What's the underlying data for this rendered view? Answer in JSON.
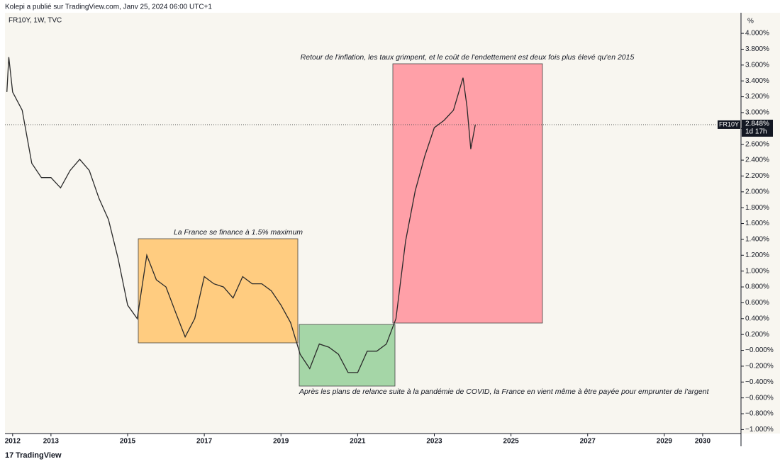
{
  "header": "Kolepi a publié sur TradingView.com, Janv 25, 2024 06:00 UTC+1",
  "symbol_info": "FR10Y, 1W, TVC",
  "footer": "TradingView",
  "chart_data": {
    "type": "line",
    "axis_unit": "%",
    "x": [
      2011.85,
      2011.9,
      2012.0,
      2012.25,
      2012.5,
      2012.75,
      2013.0,
      2013.25,
      2013.5,
      2013.75,
      2014.0,
      2014.25,
      2014.5,
      2014.75,
      2015.0,
      2015.25,
      2015.5,
      2015.75,
      2016.0,
      2016.25,
      2016.5,
      2016.75,
      2017.0,
      2017.25,
      2017.5,
      2017.75,
      2018.0,
      2018.25,
      2018.5,
      2018.75,
      2019.0,
      2019.25,
      2019.5,
      2019.75,
      2020.0,
      2020.25,
      2020.5,
      2020.75,
      2021.0,
      2021.25,
      2021.5,
      2021.75,
      2022.0,
      2022.25,
      2022.5,
      2022.75,
      2023.0,
      2023.25,
      2023.5,
      2023.75,
      2023.85,
      2023.95,
      2024.07
    ],
    "series": [
      {
        "name": "FR10Y",
        "color": "#2a2a2a",
        "values": [
          3.26,
          3.7,
          3.26,
          3.03,
          2.36,
          2.18,
          2.18,
          2.05,
          2.27,
          2.41,
          2.27,
          1.92,
          1.65,
          1.16,
          0.57,
          0.4,
          1.2,
          0.89,
          0.8,
          0.48,
          0.17,
          0.4,
          0.93,
          0.84,
          0.8,
          0.66,
          0.93,
          0.84,
          0.84,
          0.75,
          0.57,
          0.35,
          -0.05,
          -0.23,
          0.08,
          0.04,
          -0.05,
          -0.28,
          -0.28,
          -0.01,
          -0.01,
          0.08,
          0.4,
          1.38,
          2.01,
          2.45,
          2.81,
          2.9,
          3.03,
          3.44,
          3.08,
          2.54,
          2.848
        ]
      }
    ],
    "xlim": [
      2011.8,
      2031.0
    ],
    "xticks": [
      2012,
      2013,
      2015,
      2017,
      2019,
      2021,
      2023,
      2025,
      2027,
      2029,
      2030
    ],
    "ylim": [
      -1.05,
      4.26
    ],
    "yticks": [
      {
        "value": 4,
        "label": "4.000%"
      },
      {
        "value": 3.8,
        "label": "3.800%"
      },
      {
        "value": 3.6,
        "label": "3.600%"
      },
      {
        "value": 3.4,
        "label": "3.400%"
      },
      {
        "value": 3.2,
        "label": "3.200%"
      },
      {
        "value": 3,
        "label": "3.000%"
      },
      {
        "value": 2.8,
        "label": "2.800%"
      },
      {
        "value": 2.6,
        "label": "2.600%"
      },
      {
        "value": 2.4,
        "label": "2.400%"
      },
      {
        "value": 2.2,
        "label": "2.200%"
      },
      {
        "value": 2,
        "label": "2.000%"
      },
      {
        "value": 1.8,
        "label": "1.800%"
      },
      {
        "value": 1.6,
        "label": "1.600%"
      },
      {
        "value": 1.4,
        "label": "1.400%"
      },
      {
        "value": 1.2,
        "label": "1.200%"
      },
      {
        "value": 1,
        "label": "1.000%"
      },
      {
        "value": 0.8,
        "label": "0.800%"
      },
      {
        "value": 0.6,
        "label": "0.600%"
      },
      {
        "value": 0.4,
        "label": "0.400%"
      },
      {
        "value": 0.2,
        "label": "0.200%"
      },
      {
        "value": 0,
        "label": "−0.000%"
      },
      {
        "value": -0.2,
        "label": "−0.200%"
      },
      {
        "value": -0.4,
        "label": "−0.400%"
      },
      {
        "value": -0.6,
        "label": "−0.600%"
      },
      {
        "value": -0.8,
        "label": "−0.800%"
      },
      {
        "value": -1,
        "label": "−1.000%"
      }
    ],
    "last_price": {
      "symbol": "FR10Y",
      "value": 2.848,
      "label": "2.848%",
      "countdown": "1d 17h"
    },
    "annotations": [
      "Retour de l'inflation, les taux grimpent, et le coût de l'endettement est deux fois plus élevé qu'en 2015",
      "La France se finance à 1.5% maximum",
      "Après les plans de relance suite à la pandémie de COVID, la France en vient même à être payée pour emprunter de l'argent"
    ]
  }
}
